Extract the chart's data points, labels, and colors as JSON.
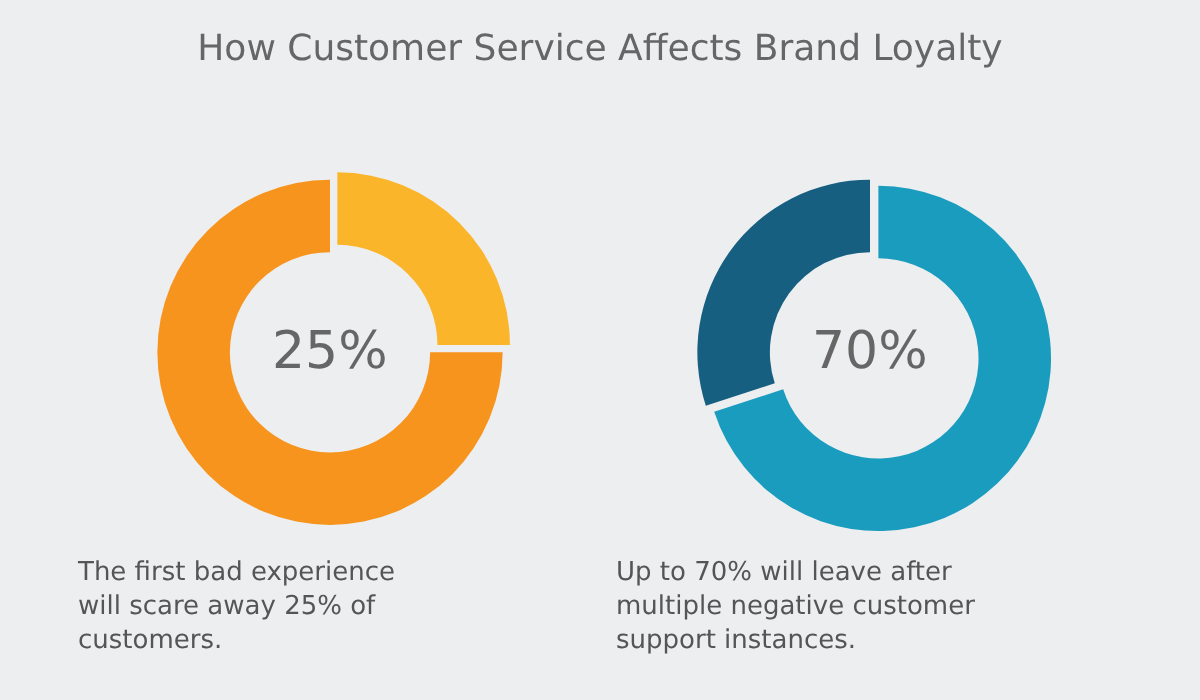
{
  "chart_data": [
    {
      "type": "donut",
      "title": "How Customer Service Affects Brand Loyalty",
      "categories": [
        null,
        null
      ],
      "values": [
        25,
        75
      ],
      "colors": [
        "#fbb52b",
        "#f7941d"
      ],
      "annotations": [
        "25%",
        "The first bad experience\nwill scare away 25% of\ncustomers."
      ]
    },
    {
      "type": "donut",
      "categories": [
        null,
        null
      ],
      "values": [
        70,
        30
      ],
      "colors": [
        "#1a9cbf",
        "#165f80"
      ],
      "annotations": [
        "70%",
        "Up to 70% will leave after\nmultiple negative customer\nsupport instances."
      ]
    }
  ]
}
